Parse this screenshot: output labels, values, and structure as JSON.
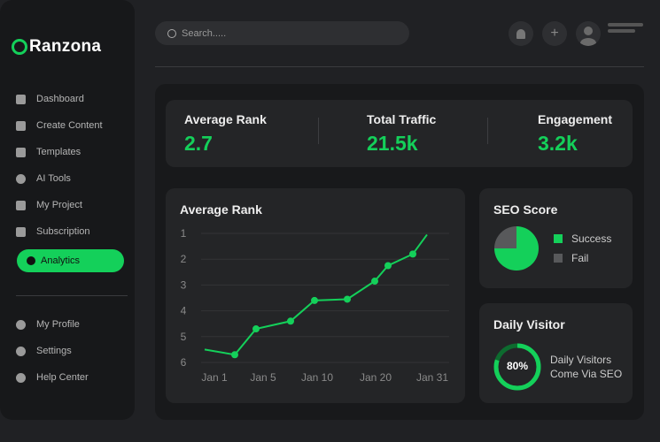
{
  "brand": {
    "name": "Ranzona",
    "accent": "#14d05a"
  },
  "sidebar": {
    "items": [
      {
        "label": "Dashboard",
        "icon": "grid-icon"
      },
      {
        "label": "Create Content",
        "icon": "plus-square-icon"
      },
      {
        "label": "Templates",
        "icon": "layout-icon"
      },
      {
        "label": "AI Tools",
        "icon": "ai-icon"
      },
      {
        "label": "My Project",
        "icon": "edit-doc-icon"
      },
      {
        "label": "Subscription",
        "icon": "card-icon"
      }
    ],
    "active": {
      "label": "Analytics",
      "icon": "pie-chart-icon"
    },
    "bottom": [
      {
        "label": "My Profile",
        "icon": "user-icon"
      },
      {
        "label": "Settings",
        "icon": "gear-icon"
      },
      {
        "label": "Help Center",
        "icon": "help-icon"
      }
    ]
  },
  "header": {
    "search_placeholder": "Search....."
  },
  "stats": [
    {
      "label": "Average Rank",
      "value": "2.7"
    },
    {
      "label": "Total Traffic",
      "value": "21.5k"
    },
    {
      "label": "Engagement",
      "value": "3.2k"
    }
  ],
  "chart_data": {
    "type": "line",
    "title": "Average Rank",
    "y_ticks": [
      "1",
      "2",
      "3",
      "4",
      "5",
      "6"
    ],
    "ylim": [
      1,
      6
    ],
    "y_inverted": true,
    "x_ticks": [
      "Jan 1",
      "Jan 5",
      "Jan 10",
      "Jan 20",
      "Jan 31"
    ],
    "values": [
      5.5,
      5.7,
      4.7,
      4.4,
      3.6,
      3.55,
      2.85,
      2.25,
      1.8,
      1.05
    ],
    "grid": true,
    "color": "#14d05a"
  },
  "seo": {
    "title": "SEO Score",
    "slices": [
      {
        "label": "Success",
        "value": 75,
        "color": "#14d05a"
      },
      {
        "label": "Fail",
        "value": 25,
        "color": "#58595b"
      }
    ]
  },
  "daily": {
    "title": "Daily Visitor",
    "percent": 80,
    "percent_label": "80%",
    "line1": "Daily Visitors",
    "line2": "Come Via SEO"
  }
}
